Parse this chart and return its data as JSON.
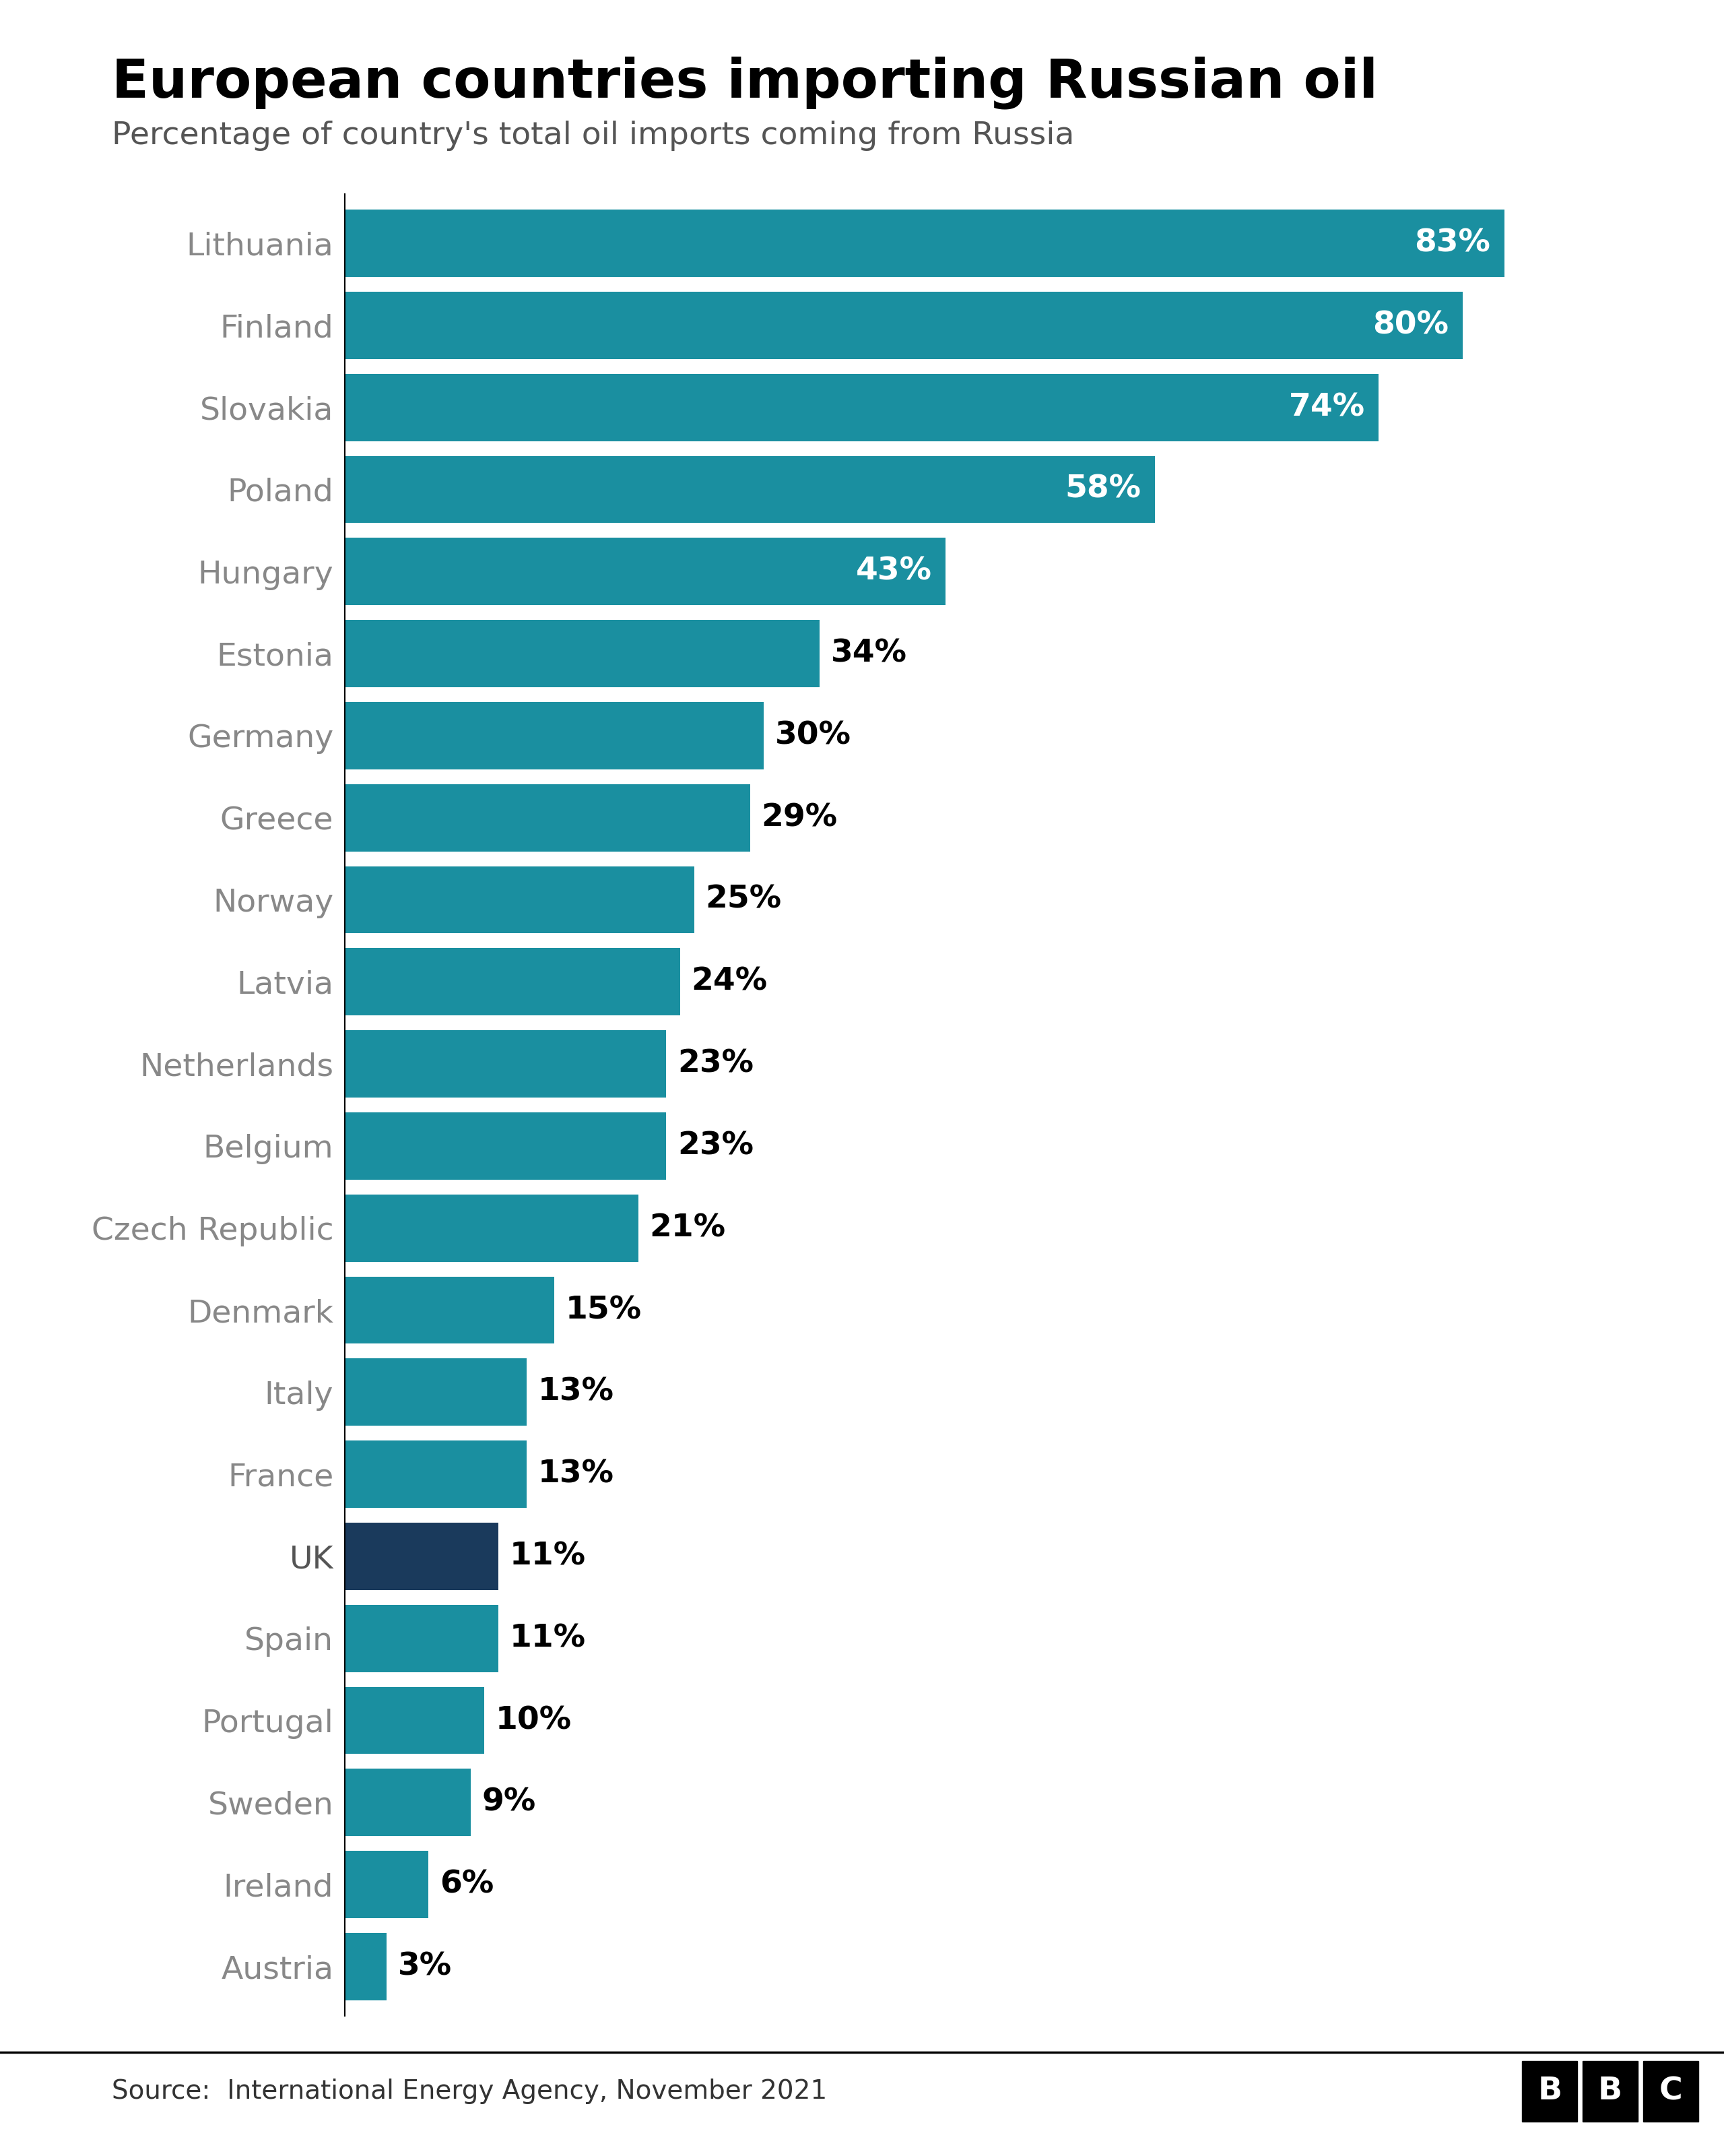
{
  "title": "European countries importing Russian oil",
  "subtitle": "Percentage of country's total oil imports coming from Russia",
  "source": "Source:  International Energy Agency, November 2021",
  "categories": [
    "Lithuania",
    "Finland",
    "Slovakia",
    "Poland",
    "Hungary",
    "Estonia",
    "Germany",
    "Greece",
    "Norway",
    "Latvia",
    "Netherlands",
    "Belgium",
    "Czech Republic",
    "Denmark",
    "Italy",
    "France",
    "UK",
    "Spain",
    "Portugal",
    "Sweden",
    "Ireland",
    "Austria"
  ],
  "values": [
    83,
    80,
    74,
    58,
    43,
    34,
    30,
    29,
    25,
    24,
    23,
    23,
    21,
    15,
    13,
    13,
    11,
    11,
    10,
    9,
    6,
    3
  ],
  "bar_color_default": "#1a8fa0",
  "bar_color_uk": "#1a3a5c",
  "uk_index": 16,
  "title_fontsize": 58,
  "subtitle_fontsize": 34,
  "label_fontsize": 34,
  "value_fontsize": 34,
  "source_fontsize": 28,
  "background_color": "#ffffff",
  "bar_height": 0.82,
  "xlim": [
    0,
    95
  ],
  "white_label_threshold": 40,
  "label_color_gray": "#888888",
  "label_color_uk": "#555555"
}
